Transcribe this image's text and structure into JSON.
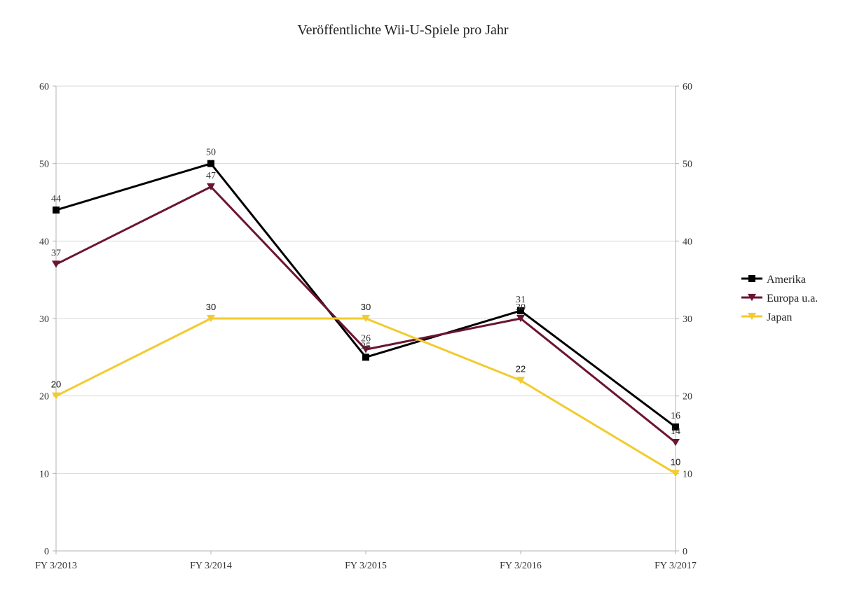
{
  "chart_data": {
    "type": "line",
    "title": "Veröffentlichte Wii-U-Spiele pro Jahr",
    "xlabel": "",
    "ylabel": "",
    "categories": [
      "FY 3/2013",
      "FY 3/2014",
      "FY 3/2015",
      "FY 3/2016",
      "FY 3/2017"
    ],
    "ylim": [
      0,
      60
    ],
    "yticks": [
      "0",
      "10",
      "20",
      "30",
      "40",
      "50",
      "60"
    ],
    "grid": true,
    "secondary_y_axis": true,
    "legend_position": "right",
    "series": [
      {
        "name": "Amerika",
        "values": [
          44,
          50,
          25,
          31,
          16
        ],
        "labels": [
          "44",
          "50",
          "25",
          "31",
          "16"
        ],
        "color": "#000000",
        "marker": "square"
      },
      {
        "name": "Europa u.a.",
        "values": [
          37,
          47,
          26,
          30,
          14
        ],
        "labels": [
          "37",
          "47",
          "26",
          "30",
          "14"
        ],
        "color": "#6b1530",
        "marker": "triangle-down"
      },
      {
        "name": "Japan",
        "values": [
          20,
          30,
          30,
          22,
          10
        ],
        "labels": [
          "20",
          "30",
          "30",
          "22",
          "10"
        ],
        "color": "#f2cb2e",
        "marker": "triangle-down"
      }
    ]
  }
}
